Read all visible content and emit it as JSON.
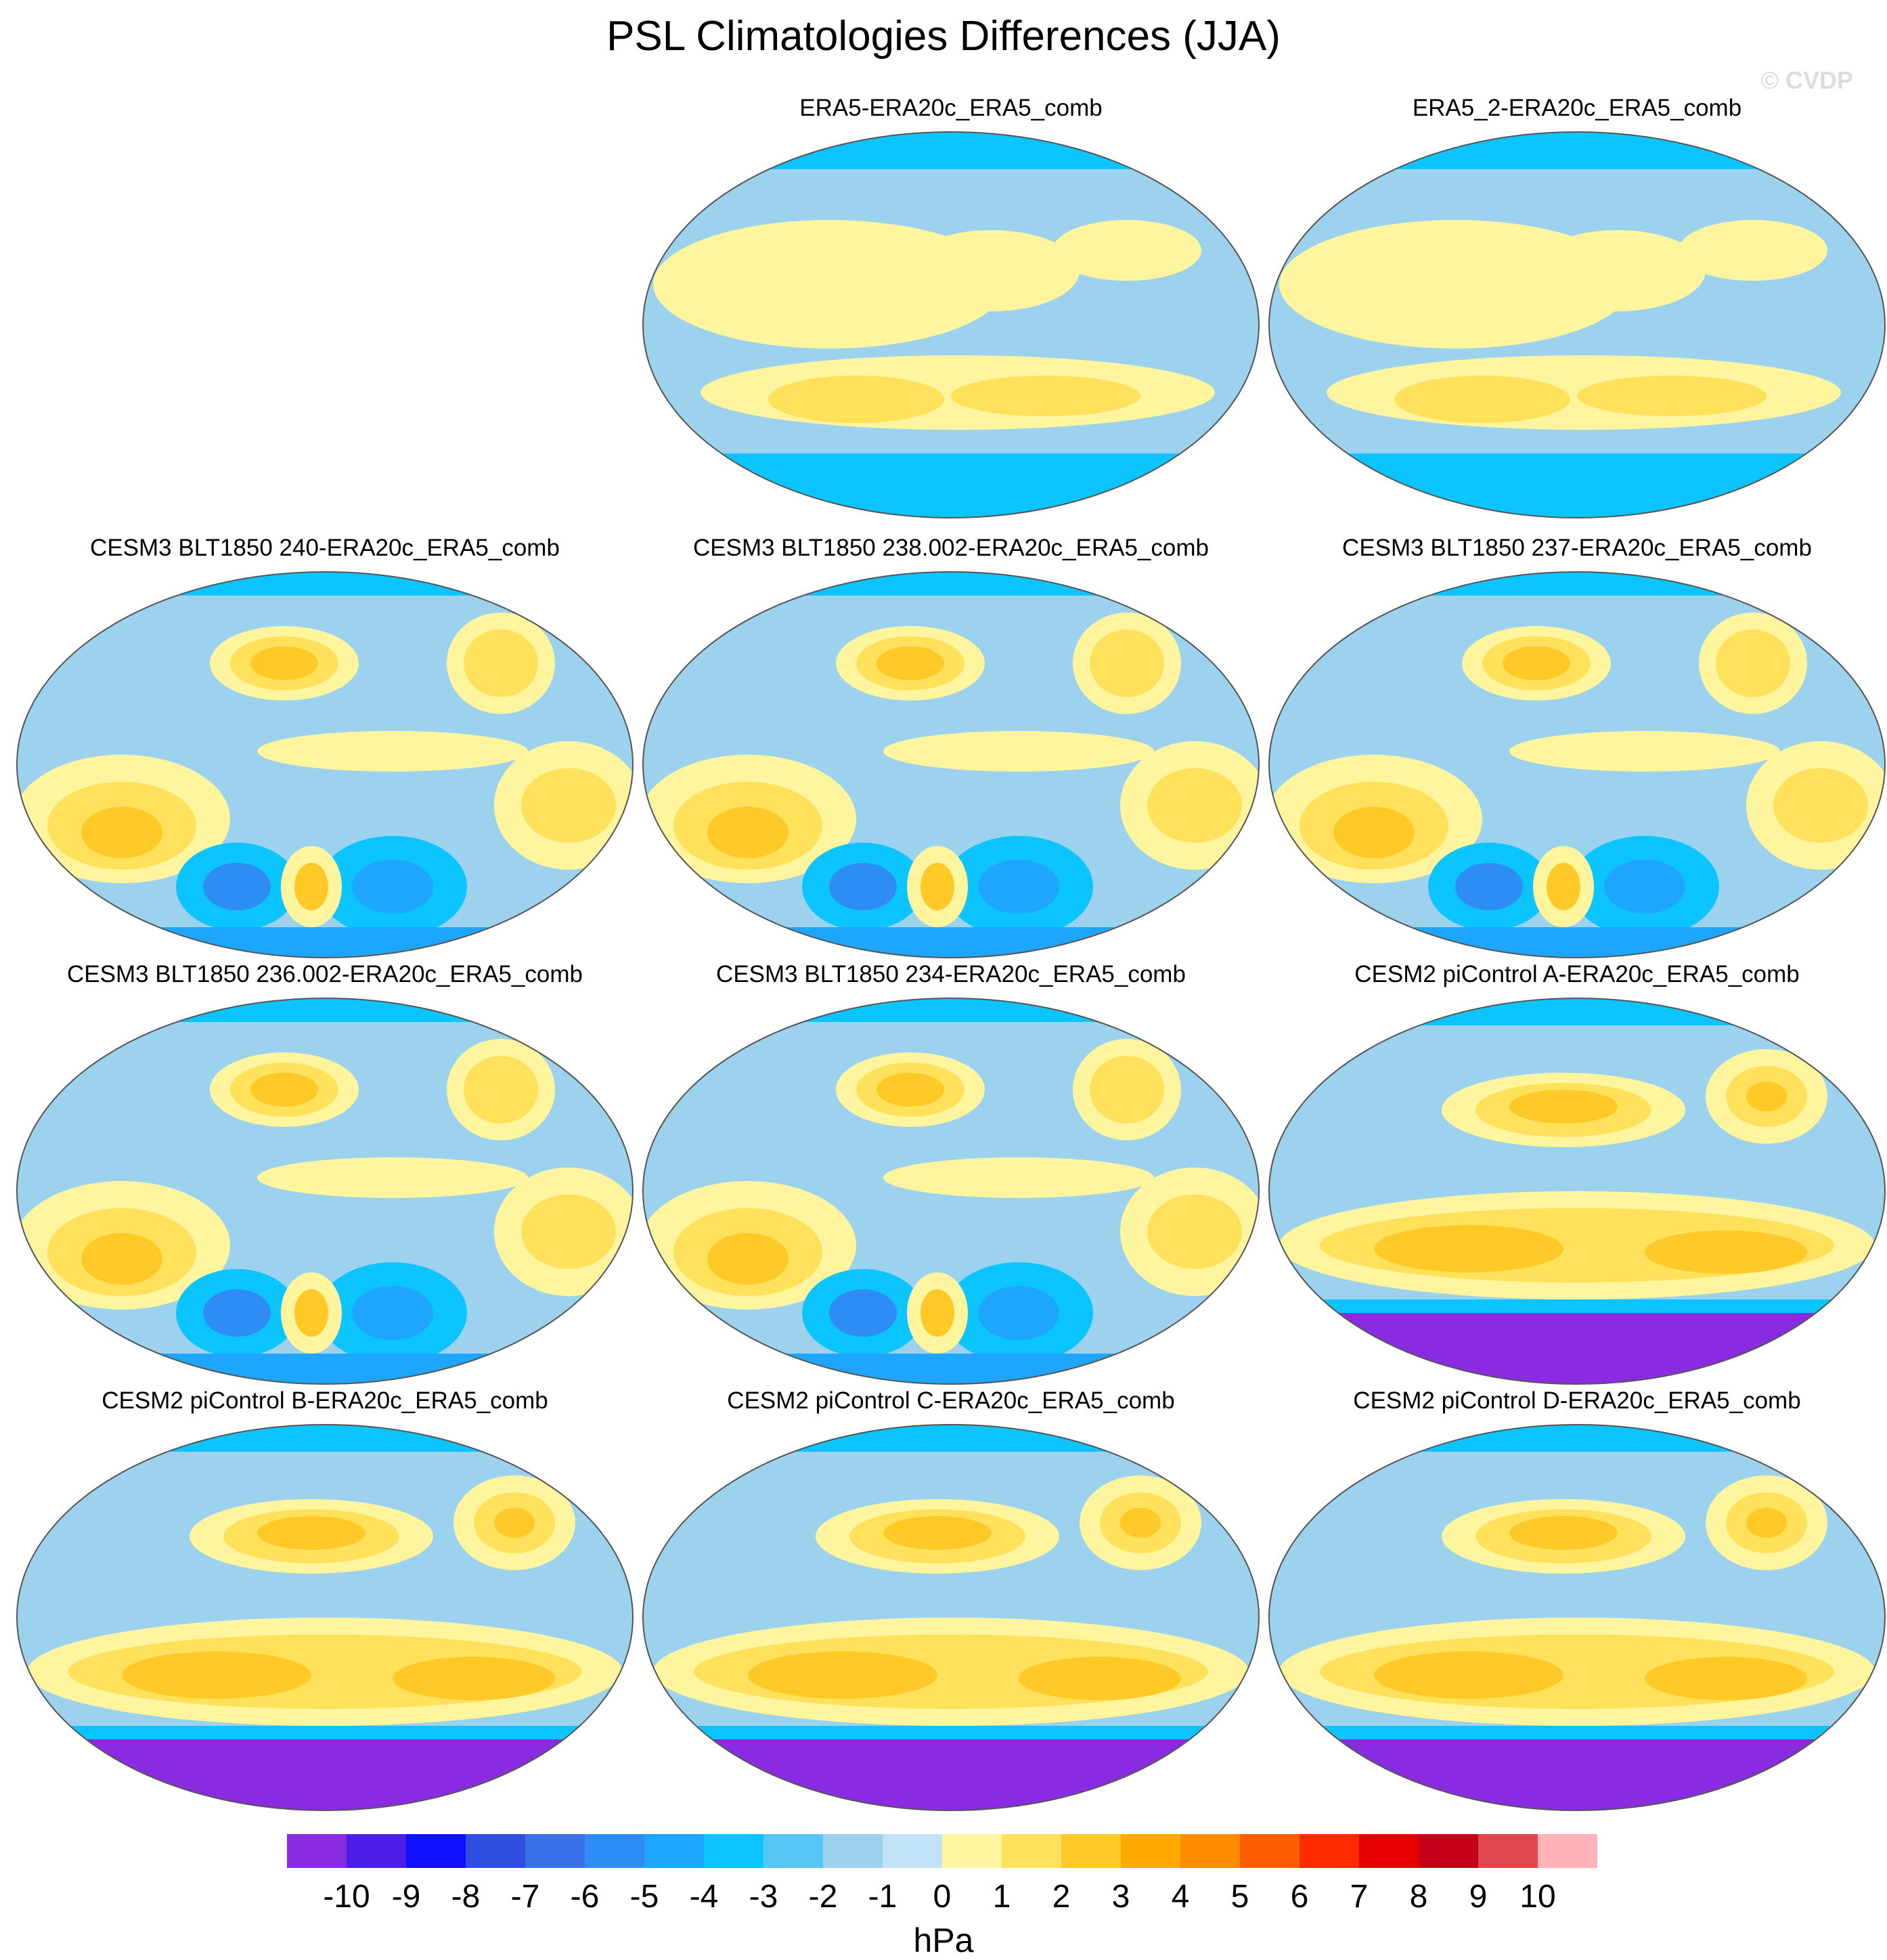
{
  "title": "PSL Climatologies Differences (JJA)",
  "watermark": "© CVDP",
  "units": "hPa",
  "panels": [
    {
      "title": "ERA5-ERA20c_ERA5_comb",
      "pattern": "era5"
    },
    {
      "title": "ERA5_2-ERA20c_ERA5_comb",
      "pattern": "era5"
    },
    {
      "title": "CESM3 BLT1850 240-ERA20c_ERA5_comb",
      "pattern": "cesm3"
    },
    {
      "title": "CESM3 BLT1850 238.002-ERA20c_ERA5_comb",
      "pattern": "cesm3"
    },
    {
      "title": "CESM3 BLT1850 237-ERA20c_ERA5_comb",
      "pattern": "cesm3"
    },
    {
      "title": "CESM3 BLT1850 236.002-ERA20c_ERA5_comb",
      "pattern": "cesm3"
    },
    {
      "title": "CESM3 BLT1850 234-ERA20c_ERA5_comb",
      "pattern": "cesm3"
    },
    {
      "title": "CESM2 piControl A-ERA20c_ERA5_comb",
      "pattern": "cesm2"
    },
    {
      "title": "CESM2 piControl B-ERA20c_ERA5_comb",
      "pattern": "cesm2"
    },
    {
      "title": "CESM2 piControl C-ERA20c_ERA5_comb",
      "pattern": "cesm2"
    },
    {
      "title": "CESM2 piControl D-ERA20c_ERA5_comb",
      "pattern": "cesm2"
    }
  ],
  "chart_data": {
    "type": "heatmap",
    "title": "PSL Climatologies Differences (JJA)",
    "projection": "Robinson (global map)",
    "colorbar": {
      "units": "hPa",
      "ticks": [
        "-10",
        "-9",
        "-8",
        "-7",
        "-6",
        "-5",
        "-4",
        "-3",
        "-2",
        "-1",
        "0",
        "1",
        "2",
        "3",
        "4",
        "5",
        "6",
        "7",
        "8",
        "9",
        "10"
      ],
      "colors": [
        "#8a2be2",
        "#4b1fe5",
        "#1010ff",
        "#2e4fe0",
        "#3a70e8",
        "#2d8df5",
        "#1ea6ff",
        "#0cc4ff",
        "#55c6f5",
        "#9dd2ef",
        "#c2e3f7",
        "#fff59e",
        "#ffe15c",
        "#ffc928",
        "#ffaa00",
        "#ff8c00",
        "#ff5e00",
        "#ff2b00",
        "#e60000",
        "#c30015",
        "#e0474e",
        "#ffb3b8"
      ]
    }
  }
}
